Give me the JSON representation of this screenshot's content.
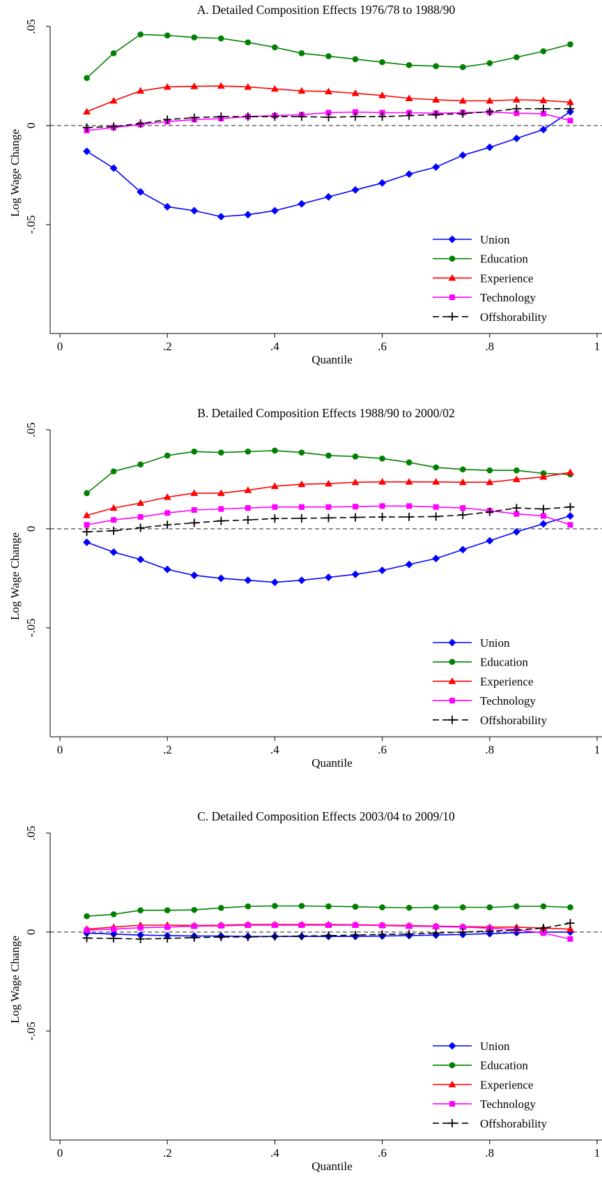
{
  "chart_data": [
    {
      "type": "line",
      "title": "A. Detailed Composition Effects 1976/78 to 1988/90",
      "xlabel": "Quantile",
      "ylabel": "Log Wage Change",
      "xlim": [
        0,
        1
      ],
      "ylim": [
        -0.105,
        0.05
      ],
      "xticks": [
        0,
        0.2,
        0.4,
        0.6,
        0.8,
        1
      ],
      "xtick_labels": [
        "0",
        ".2",
        ".4",
        ".6",
        ".8",
        "1"
      ],
      "yticks": [
        0.05,
        0,
        -0.05
      ],
      "ytick_labels": [
        ".05",
        "0",
        "-.05"
      ],
      "zero_line": "dashed",
      "grid": false,
      "legend_position": "bottom-right",
      "x": [
        0.05,
        0.1,
        0.15,
        0.2,
        0.25,
        0.3,
        0.35,
        0.4,
        0.45,
        0.5,
        0.55,
        0.6,
        0.65,
        0.7,
        0.75,
        0.8,
        0.85,
        0.9,
        0.95
      ],
      "series": [
        {
          "name": "Union",
          "color": "#0000ff",
          "marker": "diamond",
          "dash": false,
          "values": [
            -0.013,
            -0.0215,
            -0.0335,
            -0.041,
            -0.043,
            -0.046,
            -0.045,
            -0.043,
            -0.0395,
            -0.036,
            -0.0325,
            -0.029,
            -0.0245,
            -0.021,
            -0.015,
            -0.011,
            -0.0065,
            -0.002,
            0.007
          ]
        },
        {
          "name": "Education",
          "color": "#008000",
          "marker": "circle",
          "dash": false,
          "values": [
            0.024,
            0.0365,
            0.046,
            0.0455,
            0.0445,
            0.044,
            0.042,
            0.0395,
            0.0365,
            0.035,
            0.0335,
            0.032,
            0.0305,
            0.03,
            0.0295,
            0.0315,
            0.0345,
            0.0375,
            0.041
          ]
        },
        {
          "name": "Experience",
          "color": "#ff0000",
          "marker": "triangle",
          "dash": false,
          "values": [
            0.007,
            0.0125,
            0.0175,
            0.0195,
            0.0198,
            0.02,
            0.0195,
            0.0185,
            0.0175,
            0.0172,
            0.0163,
            0.0152,
            0.0137,
            0.013,
            0.0125,
            0.0125,
            0.013,
            0.0127,
            0.0118
          ]
        },
        {
          "name": "Technology",
          "color": "#ff00ff",
          "marker": "square",
          "dash": false,
          "values": [
            -0.0025,
            -0.001,
            0.0005,
            0.002,
            0.003,
            0.0035,
            0.0045,
            0.005,
            0.0055,
            0.0065,
            0.0068,
            0.0065,
            0.0065,
            0.0062,
            0.0065,
            0.0068,
            0.0062,
            0.006,
            0.0025
          ]
        },
        {
          "name": "Offshorability",
          "color": "#000000",
          "marker": "plus",
          "dash": true,
          "values": [
            -0.001,
            -0.0005,
            0.001,
            0.003,
            0.004,
            0.0045,
            0.0045,
            0.0045,
            0.0045,
            0.0042,
            0.0045,
            0.0045,
            0.005,
            0.0055,
            0.006,
            0.007,
            0.0085,
            0.0085,
            0.0085
          ]
        }
      ]
    },
    {
      "type": "line",
      "title": "B. Detailed Composition Effects 1988/90 to 2000/02",
      "xlabel": "Quantile",
      "ylabel": "Log Wage Change",
      "xlim": [
        0,
        1
      ],
      "ylim": [
        -0.105,
        0.05
      ],
      "xticks": [
        0,
        0.2,
        0.4,
        0.6,
        0.8,
        1
      ],
      "xtick_labels": [
        "0",
        ".2",
        ".4",
        ".6",
        ".8",
        "1"
      ],
      "yticks": [
        0.05,
        0,
        -0.05
      ],
      "ytick_labels": [
        ".05",
        "0",
        "-.05"
      ],
      "zero_line": "dashed",
      "grid": false,
      "legend_position": "bottom-right",
      "x": [
        0.05,
        0.1,
        0.15,
        0.2,
        0.25,
        0.3,
        0.35,
        0.4,
        0.45,
        0.5,
        0.55,
        0.6,
        0.65,
        0.7,
        0.75,
        0.8,
        0.85,
        0.9,
        0.95
      ],
      "series": [
        {
          "name": "Union",
          "color": "#0000ff",
          "marker": "diamond",
          "dash": false,
          "values": [
            -0.0068,
            -0.0118,
            -0.0155,
            -0.0205,
            -0.0235,
            -0.025,
            -0.026,
            -0.027,
            -0.026,
            -0.0245,
            -0.023,
            -0.021,
            -0.018,
            -0.015,
            -0.0105,
            -0.006,
            -0.0015,
            0.0025,
            0.0065
          ]
        },
        {
          "name": "Education",
          "color": "#008000",
          "marker": "circle",
          "dash": false,
          "values": [
            0.018,
            0.029,
            0.0325,
            0.037,
            0.039,
            0.0385,
            0.039,
            0.0395,
            0.0385,
            0.037,
            0.0365,
            0.0355,
            0.0335,
            0.031,
            0.03,
            0.0295,
            0.0295,
            0.028,
            0.0275
          ]
        },
        {
          "name": "Experience",
          "color": "#ff0000",
          "marker": "triangle",
          "dash": false,
          "values": [
            0.0068,
            0.0105,
            0.013,
            0.016,
            0.018,
            0.018,
            0.0195,
            0.0215,
            0.0225,
            0.0228,
            0.0235,
            0.0237,
            0.0237,
            0.0237,
            0.0235,
            0.0235,
            0.025,
            0.0262,
            0.0285
          ]
        },
        {
          "name": "Technology",
          "color": "#ff00ff",
          "marker": "square",
          "dash": false,
          "values": [
            0.002,
            0.0045,
            0.006,
            0.008,
            0.0095,
            0.01,
            0.0105,
            0.011,
            0.011,
            0.011,
            0.0112,
            0.0115,
            0.0115,
            0.011,
            0.0105,
            0.0092,
            0.0075,
            0.0065,
            0.002
          ]
        },
        {
          "name": "Offshorability",
          "color": "#000000",
          "marker": "plus",
          "dash": true,
          "values": [
            -0.0015,
            -0.001,
            0.0005,
            0.002,
            0.003,
            0.004,
            0.0045,
            0.0052,
            0.0053,
            0.0055,
            0.0058,
            0.006,
            0.006,
            0.0062,
            0.007,
            0.0085,
            0.0105,
            0.01,
            0.011
          ]
        }
      ]
    },
    {
      "type": "line",
      "title": "C. Detailed Composition Effects 2003/04 to 2009/10",
      "xlabel": "Quantile",
      "ylabel": "Log Wage Change",
      "xlim": [
        0,
        1
      ],
      "ylim": [
        -0.105,
        0.05
      ],
      "xticks": [
        0,
        0.2,
        0.4,
        0.6,
        0.8,
        1
      ],
      "xtick_labels": [
        "0",
        ".2",
        ".4",
        ".6",
        ".8",
        "1"
      ],
      "yticks": [
        0.05,
        0,
        -0.05
      ],
      "ytick_labels": [
        ".05",
        "0",
        "-.05"
      ],
      "zero_line": "dashed",
      "grid": false,
      "legend_position": "bottom-right",
      "x": [
        0.05,
        0.1,
        0.15,
        0.2,
        0.25,
        0.3,
        0.35,
        0.4,
        0.45,
        0.5,
        0.55,
        0.6,
        0.65,
        0.7,
        0.75,
        0.8,
        0.85,
        0.9,
        0.95
      ],
      "series": [
        {
          "name": "Union",
          "color": "#0000ff",
          "marker": "diamond",
          "dash": false,
          "values": [
            -0.0005,
            -0.001,
            -0.0015,
            -0.0018,
            -0.002,
            -0.002,
            -0.0022,
            -0.0022,
            -0.0022,
            -0.0022,
            -0.0022,
            -0.002,
            -0.0018,
            -0.0015,
            -0.0012,
            -0.0008,
            -0.0003,
            0.0,
            0.0
          ]
        },
        {
          "name": "Education",
          "color": "#008000",
          "marker": "circle",
          "dash": false,
          "values": [
            0.008,
            0.009,
            0.011,
            0.011,
            0.0112,
            0.0122,
            0.013,
            0.0132,
            0.0132,
            0.013,
            0.0128,
            0.0125,
            0.0123,
            0.0125,
            0.0125,
            0.0125,
            0.013,
            0.013,
            0.0125
          ]
        },
        {
          "name": "Experience",
          "color": "#ff0000",
          "marker": "triangle",
          "dash": false,
          "values": [
            0.0015,
            0.0025,
            0.0035,
            0.0035,
            0.0033,
            0.0035,
            0.0038,
            0.0038,
            0.0038,
            0.0038,
            0.0037,
            0.0035,
            0.0033,
            0.003,
            0.0028,
            0.0025,
            0.0025,
            0.002,
            0.0015
          ]
        },
        {
          "name": "Technology",
          "color": "#ff00ff",
          "marker": "square",
          "dash": false,
          "values": [
            0.001,
            0.0015,
            0.0022,
            0.0025,
            0.003,
            0.0032,
            0.0035,
            0.0035,
            0.0035,
            0.0035,
            0.0035,
            0.0033,
            0.003,
            0.0028,
            0.0025,
            0.002,
            0.0012,
            -0.0005,
            -0.0035
          ]
        },
        {
          "name": "Offshorability",
          "color": "#000000",
          "marker": "plus",
          "dash": true,
          "values": [
            -0.003,
            -0.0032,
            -0.0035,
            -0.0032,
            -0.0028,
            -0.0025,
            -0.0025,
            -0.0022,
            -0.002,
            -0.0018,
            -0.0015,
            -0.0012,
            -0.001,
            -0.0005,
            0.0,
            0.0005,
            0.001,
            0.002,
            0.0045
          ]
        }
      ]
    }
  ]
}
